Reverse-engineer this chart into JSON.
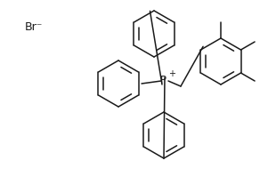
{
  "bg_color": "#ffffff",
  "line_color": "#1a1a1a",
  "line_width": 1.1,
  "text_color": "#1a1a1a",
  "br_label": "Br⁻",
  "figsize": [
    3.1,
    1.99
  ],
  "dpi": 100,
  "xlim": [
    0,
    310
  ],
  "ylim": [
    0,
    199
  ]
}
